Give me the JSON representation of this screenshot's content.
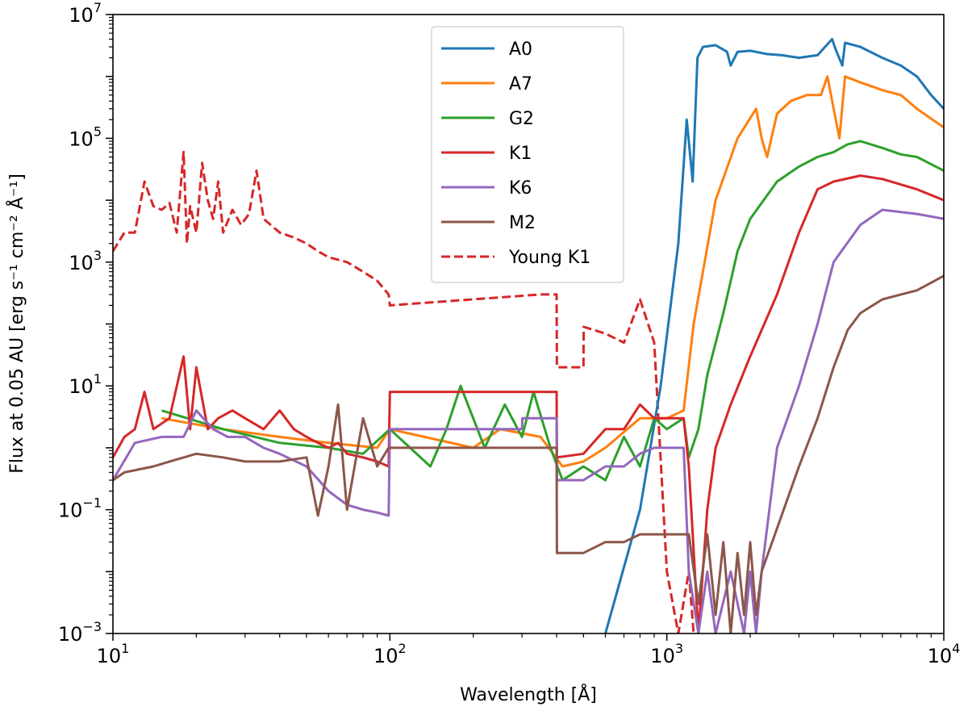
{
  "chart_data": {
    "type": "line",
    "title": "",
    "xlabel": "Wavelength [Å]",
    "ylabel": "Flux at 0.05 AU [erg s⁻¹ cm⁻² Å⁻¹]",
    "xscale": "log",
    "yscale": "log",
    "xlim": [
      10,
      10000
    ],
    "ylim": [
      0.001,
      10000000
    ],
    "xticks": [
      {
        "value": 10,
        "base": "10",
        "exp": "1"
      },
      {
        "value": 100,
        "base": "10",
        "exp": "2"
      },
      {
        "value": 1000,
        "base": "10",
        "exp": "3"
      },
      {
        "value": 10000,
        "base": "10",
        "exp": "4"
      }
    ],
    "yticks": [
      {
        "value": 0.001,
        "base": "10",
        "exp": "−3"
      },
      {
        "value": 0.1,
        "base": "10",
        "exp": "−1"
      },
      {
        "value": 10,
        "base": "10",
        "exp": "1"
      },
      {
        "value": 1000,
        "base": "10",
        "exp": "3"
      },
      {
        "value": 100000,
        "base": "10",
        "exp": "5"
      },
      {
        "value": 10000000,
        "base": "10",
        "exp": "7"
      }
    ],
    "legend_position": "top-center",
    "series": [
      {
        "name": "A0",
        "color": "#1f77b4",
        "dash": "solid",
        "x": [
          600,
          800,
          950,
          1100,
          1180,
          1240,
          1290,
          1350,
          1500,
          1650,
          1700,
          1800,
          2000,
          2300,
          2600,
          3000,
          3500,
          3950,
          4100,
          4300,
          4400,
          5000,
          6000,
          7000,
          8000,
          9000,
          10000
        ],
        "y": [
          0.001,
          0.1,
          10,
          2000,
          200000,
          20000,
          2000000,
          3000000,
          3200000,
          2500000,
          1500000,
          2500000,
          2600000,
          2300000,
          2200000,
          2000000,
          2200000,
          4000000,
          2500000,
          1500000,
          3500000,
          3000000,
          2000000,
          1500000,
          1000000,
          500000,
          300000
        ]
      },
      {
        "name": "A7",
        "color": "#ff7f0e",
        "dash": "solid",
        "x": [
          15,
          25,
          40,
          60,
          90,
          100,
          200,
          250,
          350,
          420,
          500,
          600,
          800,
          1000,
          1150,
          1250,
          1500,
          1800,
          2100,
          2200,
          2300,
          2500,
          2800,
          3200,
          3600,
          3800,
          4200,
          4400,
          5000,
          6000,
          7000,
          8000,
          10000
        ],
        "y": [
          3,
          2,
          1.5,
          1.2,
          1,
          2,
          1,
          2,
          1.5,
          0.5,
          0.6,
          1,
          3,
          3,
          4,
          100,
          10000,
          100000,
          300000,
          100000,
          50000,
          250000,
          400000,
          500000,
          500000,
          1000000,
          100000,
          1000000,
          800000,
          600000,
          500000,
          300000,
          150000
        ]
      },
      {
        "name": "G2",
        "color": "#2ca02c",
        "dash": "solid",
        "x": [
          15,
          25,
          40,
          60,
          80,
          100,
          140,
          160,
          180,
          220,
          260,
          300,
          330,
          380,
          420,
          500,
          600,
          700,
          800,
          900,
          1000,
          1150,
          1200,
          1300,
          1400,
          1600,
          1800,
          2000,
          2500,
          3000,
          3500,
          4000,
          4500,
          5000,
          6000,
          7000,
          8000,
          10000
        ],
        "y": [
          4,
          2,
          1.2,
          1,
          0.8,
          2,
          0.5,
          2,
          10,
          1,
          5,
          1.5,
          8,
          1,
          0.3,
          0.5,
          0.3,
          1.5,
          0.5,
          3,
          2,
          3,
          0.7,
          2,
          15,
          150,
          1500,
          5000,
          20000,
          35000,
          50000,
          60000,
          80000,
          90000,
          70000,
          55000,
          50000,
          30000
        ]
      },
      {
        "name": "K1",
        "color": "#d62728",
        "dash": "solid",
        "x": [
          10,
          11,
          12,
          13,
          14,
          16,
          18,
          19,
          20,
          22,
          24,
          27,
          30,
          35,
          40,
          45,
          50,
          55,
          60,
          65,
          70,
          80,
          90,
          99,
          100,
          400,
          401,
          500,
          600,
          700,
          800,
          900,
          1000,
          1100,
          1150,
          1200,
          1300,
          1400,
          1500,
          1700,
          2000,
          2500,
          3000,
          3500,
          4000,
          5000,
          6000,
          8000,
          10000
        ],
        "y": [
          0.7,
          1.5,
          2,
          8,
          2,
          3,
          30,
          2,
          20,
          2,
          3,
          4,
          3,
          2,
          4,
          2,
          1.5,
          1.2,
          1,
          1.2,
          0.8,
          0.7,
          0.6,
          0.5,
          8,
          8,
          0.7,
          0.8,
          2,
          2,
          5,
          3,
          3,
          3,
          3,
          0.5,
          0.001,
          0.1,
          1,
          5,
          30,
          300,
          3000,
          15000,
          20000,
          25000,
          22000,
          15000,
          10000
        ]
      },
      {
        "name": "K6",
        "color": "#9467bd",
        "dash": "solid",
        "x": [
          10,
          12,
          15,
          18,
          20,
          23,
          26,
          30,
          35,
          40,
          50,
          60,
          70,
          80,
          90,
          99,
          100,
          300,
          301,
          400,
          401,
          500,
          600,
          700,
          800,
          900,
          1000,
          1100,
          1150,
          1200,
          1300,
          1400,
          1500,
          1700,
          1900,
          2000,
          2100,
          2200,
          2500,
          3000,
          3500,
          4000,
          5000,
          6000,
          8000,
          10000
        ],
        "y": [
          0.3,
          1.2,
          1.5,
          1.5,
          4,
          2,
          1.5,
          1.5,
          1,
          0.8,
          0.5,
          0.2,
          0.12,
          0.1,
          0.09,
          0.08,
          2,
          2,
          3,
          3,
          0.3,
          0.3,
          0.5,
          0.5,
          0.8,
          1,
          1,
          1,
          1,
          0.01,
          0.001,
          0.01,
          0.001,
          0.01,
          0.001,
          0.01,
          0.001,
          0.01,
          1,
          10,
          100,
          1000,
          4000,
          7000,
          6000,
          5000
        ]
      },
      {
        "name": "M2",
        "color": "#8c564b",
        "dash": "solid",
        "x": [
          10,
          11,
          14,
          16,
          20,
          25,
          30,
          40,
          50,
          55,
          60,
          65,
          70,
          80,
          90,
          99,
          100,
          400,
          401,
          500,
          600,
          700,
          800,
          900,
          1000,
          1100,
          1200,
          1300,
          1400,
          1500,
          1600,
          1700,
          1800,
          1900,
          2000,
          2100,
          2200,
          2500,
          3000,
          3500,
          4000,
          4500,
          5000,
          6000,
          7000,
          8000,
          10000
        ],
        "y": [
          0.3,
          0.4,
          0.5,
          0.6,
          0.8,
          0.7,
          0.6,
          0.6,
          0.7,
          0.08,
          0.5,
          5,
          0.1,
          3,
          0.5,
          1,
          1,
          1,
          0.02,
          0.02,
          0.03,
          0.03,
          0.04,
          0.04,
          0.04,
          0.04,
          0.04,
          0.003,
          0.04,
          0.002,
          0.03,
          0.001,
          0.02,
          0.002,
          0.03,
          0.002,
          0.01,
          0.05,
          0.5,
          3,
          20,
          80,
          150,
          250,
          300,
          350,
          600
        ]
      },
      {
        "name": "Young K1",
        "color": "#d62728",
        "dash": "dashed",
        "x": [
          10,
          11,
          12,
          13,
          14,
          15,
          16,
          17,
          18,
          18.5,
          19,
          20,
          21,
          22,
          23,
          24,
          25,
          27,
          29,
          31,
          33,
          35,
          40,
          45,
          50,
          55,
          60,
          70,
          80,
          90,
          99,
          100,
          350,
          400,
          401,
          500,
          501,
          600,
          700,
          800,
          900,
          1000,
          1100,
          1200,
          1250
        ],
        "y": [
          1500,
          3000,
          3000,
          20000,
          8000,
          7000,
          9000,
          3000,
          60000,
          2000,
          8000,
          3000,
          40000,
          10000,
          5000,
          20000,
          3000,
          7000,
          4000,
          6000,
          30000,
          5000,
          3000,
          2500,
          2000,
          1500,
          1200,
          1000,
          700,
          500,
          300,
          200,
          300,
          300,
          20,
          20,
          90,
          70,
          50,
          250,
          50,
          0.01,
          0.001,
          0.01,
          0.001
        ]
      }
    ]
  }
}
